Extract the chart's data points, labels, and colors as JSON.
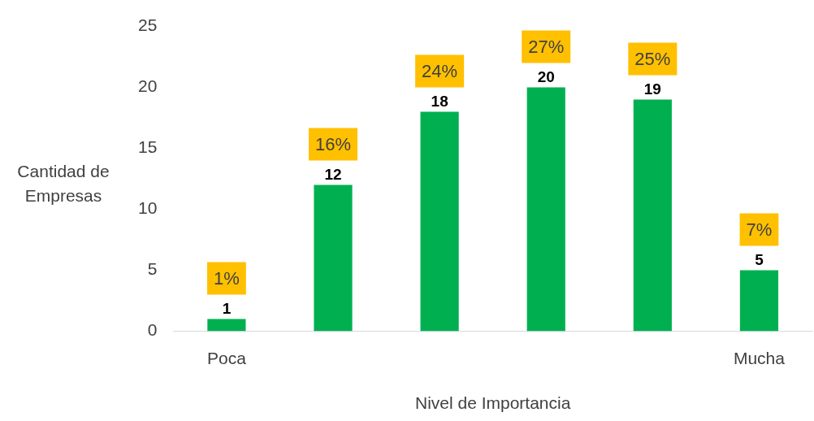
{
  "chart_data": {
    "type": "bar",
    "xlabel": "Nivel de Importancia",
    "ylabel": "Cantidad de Empresas",
    "categories": [
      "Poca",
      null,
      null,
      null,
      null,
      "Mucha"
    ],
    "values": [
      1,
      12,
      18,
      20,
      19,
      5
    ],
    "color": "#00b050",
    "ylim": [
      0,
      25
    ],
    "yticks": [
      0,
      5,
      10,
      15,
      20,
      25
    ],
    "grid": false,
    "legend": false,
    "data_labels": true,
    "annotations": [
      "1%",
      "16%",
      "24%",
      "27%",
      "25%",
      "7%"
    ]
  }
}
